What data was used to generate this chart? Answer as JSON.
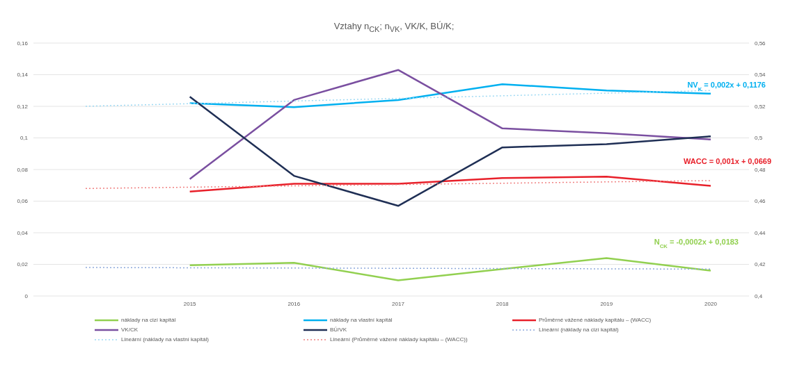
{
  "chart_data": {
    "type": "line",
    "title": "Vztahy n$_{CK}$; n$_{VK}$, VK/K, BÚ/K;",
    "categories": [
      null,
      "2015",
      "2016",
      "2017",
      "2018",
      "2019",
      "2020"
    ],
    "series": [
      {
        "name": "náklady na cizí kapitál",
        "color": "#92d050",
        "values": [
          null,
          0.0195,
          0.021,
          0.0099,
          0.017,
          0.024,
          0.016
        ]
      },
      {
        "name": "náklady na vlastní kapitál",
        "color": "#00b0f0",
        "values": [
          null,
          0.122,
          0.1195,
          0.124,
          0.134,
          0.13,
          0.128
        ]
      },
      {
        "name": "Průměrné vážené náklady kapitálu – (WACC)",
        "color": "#e8202a",
        "values": [
          null,
          0.066,
          0.071,
          0.071,
          0.0746,
          0.0755,
          0.0697
        ]
      },
      {
        "name": "VK/CK",
        "color": "#7a4fa0",
        "axis": "y2",
        "values": [
          null,
          0.474,
          0.524,
          0.543,
          0.506,
          0.503,
          0.499
        ]
      },
      {
        "name": "BÚ/VK",
        "color": "#1f2f55",
        "axis": "y2",
        "values": [
          null,
          0.526,
          0.476,
          0.457,
          0.494,
          0.496,
          0.501
        ]
      },
      {
        "name": "Lineární (náklady na cizí kapitál)",
        "color": "#8ea9db",
        "line_style": "dotted",
        "values": [
          0.018,
          null,
          null,
          null,
          null,
          null,
          0.017
        ]
      },
      {
        "name": "Lineární (náklady na vlastní kapitál)",
        "color": "#9dd9f3",
        "line_style": "dotted",
        "values": [
          0.12,
          null,
          null,
          null,
          null,
          null,
          0.13
        ]
      },
      {
        "name": "Lineární (Průměrné vážené náklady kapitálu – (WACC))",
        "color": "#f08080",
        "line_style": "dotted",
        "values": [
          0.068,
          null,
          null,
          null,
          null,
          null,
          0.073
        ]
      }
    ],
    "ylim": [
      0,
      0.16
    ],
    "yticks": [
      0,
      {
        "value": 0.02,
        "label": "0,02"
      },
      {
        "value": 0.04,
        "label": "0,04"
      },
      {
        "value": 0.06,
        "label": "0,06"
      },
      {
        "value": 0.08,
        "label": "0,08"
      },
      {
        "value": 0.1,
        "label": "0,1"
      },
      {
        "value": 0.12,
        "label": "0,12"
      },
      {
        "value": 0.14,
        "label": "0,14"
      },
      {
        "value": 0.16,
        "label": "0,16"
      }
    ],
    "y2lim": [
      0.4,
      0.56
    ],
    "y2ticks": [
      {
        "value": 0.4,
        "label": "0,4"
      },
      {
        "value": 0.42,
        "label": "0,42"
      },
      {
        "value": 0.44,
        "label": "0,44"
      },
      {
        "value": 0.46,
        "label": "0,46"
      },
      {
        "value": 0.48,
        "label": "0,48"
      },
      {
        "value": 0.5,
        "label": "0,5"
      },
      {
        "value": 0.52,
        "label": "0,52"
      },
      {
        "value": 0.54,
        "label": "0,54"
      },
      {
        "value": 0.56,
        "label": "0,56"
      }
    ],
    "annotations": [
      "NV$_{K}$ = 0,002x + 0,1176",
      "WACC = 0,001x + 0,0669",
      "N$_{CK}$ = -0,0002x + 0,0183"
    ],
    "grid": "y",
    "legend": "bottom",
    "marker": "none"
  }
}
